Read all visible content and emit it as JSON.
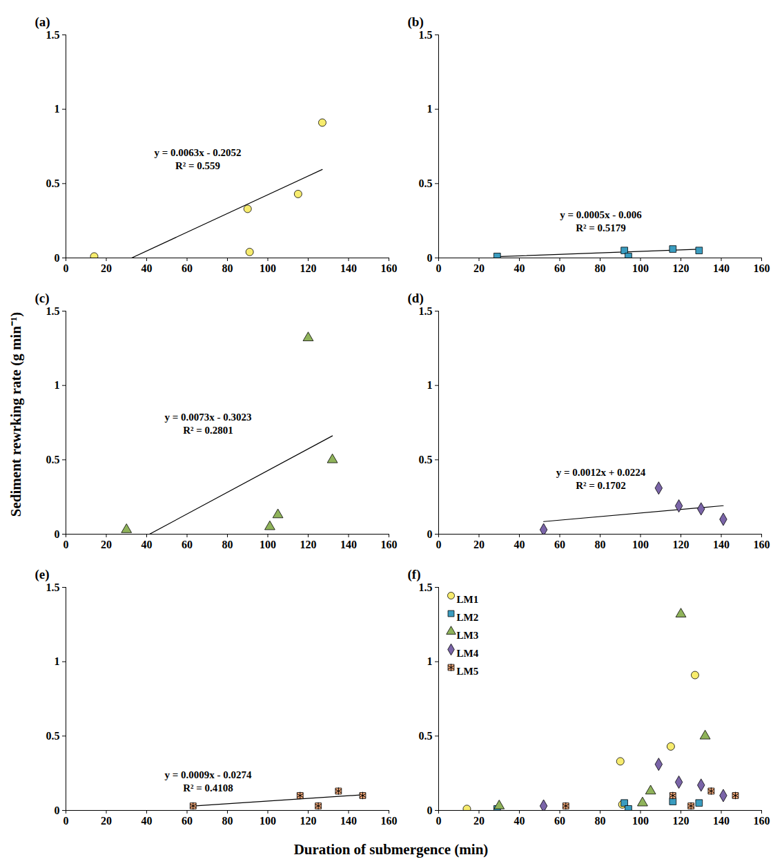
{
  "ylabel": "Sediment rewrking rate (g min⁻¹)",
  "xlabel": "Duration of submergence (min)",
  "chart_data": [
    {
      "type": "scatter",
      "title": "(a)",
      "xlim": [
        0,
        160
      ],
      "ylim": [
        0,
        1.5
      ],
      "xticks": [
        0,
        20,
        40,
        60,
        80,
        100,
        120,
        140,
        160
      ],
      "yticks": [
        0,
        0.5,
        1,
        1.5
      ],
      "grid": false,
      "series": [
        {
          "color": "#f7ec6e",
          "marker": "circle",
          "x": [
            14,
            90,
            91,
            115,
            127
          ],
          "values": [
            0.01,
            0.33,
            0.04,
            0.43,
            0.91
          ]
        }
      ],
      "trendline": {
        "slope": 0.0063,
        "intercept": -0.2052,
        "equation": "y = 0.0063x - 0.2052",
        "r_squared": "R² = 0.559"
      }
    },
    {
      "type": "scatter",
      "title": "(b)",
      "xlim": [
        0,
        160
      ],
      "ylim": [
        0,
        1.5
      ],
      "xticks": [
        0,
        20,
        40,
        60,
        80,
        100,
        120,
        140,
        160
      ],
      "yticks": [
        0,
        0.5,
        1,
        1.5
      ],
      "grid": false,
      "series": [
        {
          "color": "#3a9cbf",
          "marker": "square",
          "x": [
            29,
            92,
            94,
            116,
            129
          ],
          "values": [
            0.01,
            0.05,
            0.01,
            0.06,
            0.05
          ]
        }
      ],
      "trendline": {
        "slope": 0.0005,
        "intercept": -0.006,
        "equation": "y = 0.0005x - 0.006",
        "r_squared": "R² = 0.5179"
      }
    },
    {
      "type": "scatter",
      "title": "(c)",
      "xlim": [
        0,
        160
      ],
      "ylim": [
        0,
        1.5
      ],
      "xticks": [
        0,
        20,
        40,
        60,
        80,
        100,
        120,
        140,
        160
      ],
      "yticks": [
        0,
        0.5,
        1,
        1.5
      ],
      "grid": false,
      "series": [
        {
          "color": "#8fb35a",
          "marker": "triangle",
          "x": [
            30,
            101,
            105,
            120,
            132
          ],
          "values": [
            0.03,
            0.05,
            0.13,
            1.32,
            0.5
          ]
        }
      ],
      "trendline": {
        "slope": 0.0073,
        "intercept": -0.3023,
        "equation": "y = 0.0073x - 0.3023",
        "r_squared": "R² = 0.2801"
      }
    },
    {
      "type": "scatter",
      "title": "(d)",
      "xlim": [
        0,
        160
      ],
      "ylim": [
        0,
        1.5
      ],
      "xticks": [
        0,
        20,
        40,
        60,
        80,
        100,
        120,
        140,
        160
      ],
      "yticks": [
        0,
        0.5,
        1,
        1.5
      ],
      "grid": false,
      "series": [
        {
          "color": "#7a64a8",
          "marker": "diamond",
          "x": [
            52,
            109,
            119,
            130,
            141
          ],
          "values": [
            0.03,
            0.31,
            0.19,
            0.17,
            0.1
          ]
        }
      ],
      "trendline": {
        "slope": 0.0012,
        "intercept": 0.0224,
        "equation": "y = 0.0012x + 0.0224",
        "r_squared": "R² = 0.1702"
      }
    },
    {
      "type": "scatter",
      "title": "(e)",
      "xlim": [
        0,
        160
      ],
      "ylim": [
        0,
        1.5
      ],
      "xticks": [
        0,
        20,
        40,
        60,
        80,
        100,
        120,
        140,
        160
      ],
      "yticks": [
        0,
        0.5,
        1,
        1.5
      ],
      "grid": false,
      "series": [
        {
          "color": "#f2a878",
          "marker": "asterisk",
          "x": [
            63,
            116,
            125,
            135,
            147
          ],
          "values": [
            0.03,
            0.1,
            0.03,
            0.13,
            0.1
          ]
        }
      ],
      "trendline": {
        "slope": 0.0009,
        "intercept": -0.0274,
        "equation": "y = 0.0009x - 0.0274",
        "r_squared": "R² = 0.4108"
      }
    },
    {
      "type": "scatter",
      "title": "(f)",
      "xlim": [
        0,
        160
      ],
      "ylim": [
        0,
        1.5
      ],
      "xticks": [
        0,
        20,
        40,
        60,
        80,
        100,
        120,
        140,
        160
      ],
      "yticks": [
        0,
        0.5,
        1,
        1.5
      ],
      "grid": false,
      "legend": "top-left",
      "series": [
        {
          "name": "LM1",
          "color": "#f7ec6e",
          "marker": "circle",
          "x": [
            14,
            90,
            91,
            115,
            127
          ],
          "values": [
            0.01,
            0.33,
            0.04,
            0.43,
            0.91
          ]
        },
        {
          "name": "LM2",
          "color": "#3a9cbf",
          "marker": "square",
          "x": [
            29,
            92,
            94,
            116,
            129
          ],
          "values": [
            0.01,
            0.05,
            0.01,
            0.06,
            0.05
          ]
        },
        {
          "name": "LM3",
          "color": "#8fb35a",
          "marker": "triangle",
          "x": [
            30,
            101,
            105,
            120,
            132
          ],
          "values": [
            0.03,
            0.05,
            0.13,
            1.32,
            0.5
          ]
        },
        {
          "name": "LM4",
          "color": "#7a64a8",
          "marker": "diamond",
          "x": [
            52,
            109,
            119,
            130,
            141
          ],
          "values": [
            0.03,
            0.31,
            0.19,
            0.17,
            0.1
          ]
        },
        {
          "name": "LM5",
          "color": "#f2a878",
          "marker": "asterisk",
          "x": [
            63,
            116,
            125,
            135,
            147
          ],
          "values": [
            0.03,
            0.1,
            0.03,
            0.13,
            0.1
          ]
        }
      ]
    }
  ]
}
